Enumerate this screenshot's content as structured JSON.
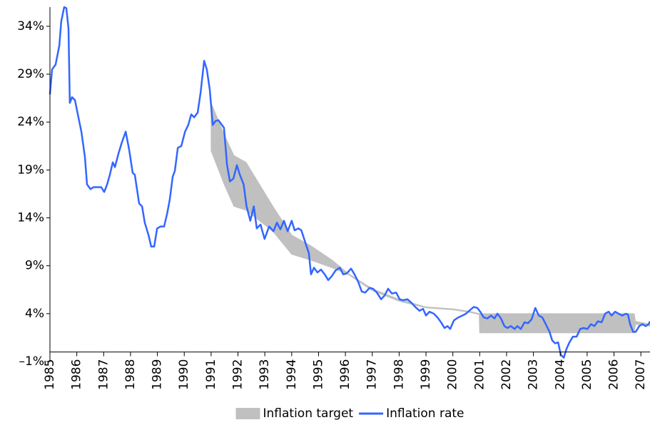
{
  "chart_data": {
    "type": "line",
    "xlim": [
      1985,
      2007.34
    ],
    "xticks": [
      1985,
      1986,
      1987,
      1988,
      1989,
      1990,
      1991,
      1992,
      1993,
      1994,
      1995,
      1996,
      1997,
      1998,
      1999,
      2000,
      2001,
      2002,
      2003,
      2004,
      2005,
      2006,
      2007
    ],
    "ylim": [
      -1,
      36
    ],
    "yticks": [
      {
        "value": -1,
        "label": "–1%"
      },
      {
        "value": 4,
        "label": "4%"
      },
      {
        "value": 9,
        "label": "9%"
      },
      {
        "value": 14,
        "label": "14%"
      },
      {
        "value": 19,
        "label": "19%"
      },
      {
        "value": 24,
        "label": "24%"
      },
      {
        "value": 29,
        "label": "29%"
      },
      {
        "value": 34,
        "label": "34%"
      }
    ],
    "x_axis_crosses": 0,
    "grid": false,
    "legend": "bottom",
    "series": [
      {
        "name": "Inflation target",
        "type": "band",
        "color": "#c0c0c0",
        "x": [
          1991.0,
          1991.5,
          1991.85,
          1992.3,
          1993.3,
          1994.0,
          1994.7,
          1995.5,
          1996.1,
          1997.0,
          1998.0,
          1999.0,
          2000.0,
          2000.7,
          2000.98,
          2001.0,
          2006.75,
          2006.8,
          2007.34
        ],
        "upper": [
          26,
          22.6,
          20.5,
          19.8,
          15.2,
          12.2,
          11.1,
          9.6,
          8.2,
          6.6,
          5.5,
          4.7,
          4.5,
          4.2,
          4.0,
          4.0,
          4.0,
          3.2,
          2.9
        ],
        "lower": [
          21,
          17.4,
          15.2,
          14.8,
          12.6,
          10.2,
          9.6,
          8.8,
          8.1,
          6.4,
          5.3,
          4.6,
          4.4,
          4.1,
          3.9,
          2.0,
          2.0,
          2.9,
          2.7
        ]
      },
      {
        "name": "Inflation rate",
        "type": "line",
        "color": "#3366ff",
        "x": [
          1985.0,
          1985.08,
          1985.21,
          1985.35,
          1985.42,
          1985.53,
          1985.61,
          1985.69,
          1985.74,
          1985.82,
          1985.93,
          1986.06,
          1986.17,
          1986.3,
          1986.38,
          1986.51,
          1986.62,
          1986.78,
          1986.91,
          1987.02,
          1987.13,
          1987.23,
          1987.34,
          1987.42,
          1987.55,
          1987.68,
          1987.82,
          1987.95,
          1988.08,
          1988.16,
          1988.32,
          1988.43,
          1988.53,
          1988.67,
          1988.77,
          1988.88,
          1988.99,
          1989.12,
          1989.25,
          1989.36,
          1989.46,
          1989.57,
          1989.65,
          1989.76,
          1989.89,
          1990.03,
          1990.15,
          1990.26,
          1990.37,
          1990.5,
          1990.61,
          1990.74,
          1990.84,
          1990.95,
          1991.06,
          1991.16,
          1991.27,
          1991.35,
          1991.48,
          1991.59,
          1991.7,
          1991.83,
          1991.96,
          1992.07,
          1992.21,
          1992.32,
          1992.46,
          1992.59,
          1992.7,
          1992.84,
          1992.99,
          1993.16,
          1993.32,
          1993.45,
          1993.58,
          1993.71,
          1993.85,
          1994.0,
          1994.11,
          1994.25,
          1994.36,
          1994.51,
          1994.64,
          1994.72,
          1994.83,
          1994.96,
          1995.09,
          1995.23,
          1995.36,
          1995.49,
          1995.63,
          1995.79,
          1995.92,
          1996.05,
          1996.21,
          1996.34,
          1996.48,
          1996.61,
          1996.74,
          1996.9,
          1997.03,
          1997.17,
          1997.33,
          1997.46,
          1997.59,
          1997.73,
          1997.89,
          1998.02,
          1998.15,
          1998.31,
          1998.47,
          1998.6,
          1998.76,
          1998.89,
          1999.0,
          1999.13,
          1999.29,
          1999.43,
          1999.56,
          1999.69,
          1999.8,
          1999.9,
          2000.04,
          2000.2,
          2000.36,
          2000.49,
          2000.65,
          2000.78,
          2000.91,
          2001.02,
          2001.15,
          2001.29,
          2001.42,
          2001.55,
          2001.66,
          2001.79,
          2001.92,
          2002.03,
          2002.16,
          2002.3,
          2002.4,
          2002.53,
          2002.67,
          2002.8,
          2002.93,
          2003.07,
          2003.2,
          2003.33,
          2003.46,
          2003.6,
          2003.7,
          2003.81,
          2003.92,
          2004.02,
          2004.13,
          2004.23,
          2004.34,
          2004.47,
          2004.61,
          2004.74,
          2004.87,
          2005.01,
          2005.14,
          2005.27,
          2005.4,
          2005.54,
          2005.67,
          2005.8,
          2005.91,
          2006.04,
          2006.17,
          2006.31,
          2006.44,
          2006.52,
          2006.6,
          2006.71,
          2006.81,
          2006.94,
          2007.05,
          2007.18,
          2007.29,
          2007.34
        ],
        "values": [
          26.9,
          29.5,
          30,
          32,
          34.5,
          36,
          35.9,
          33.8,
          26,
          26.6,
          26.3,
          24.5,
          23,
          20.4,
          17.5,
          17,
          17.2,
          17.2,
          17.2,
          16.7,
          17.5,
          18.5,
          19.8,
          19.3,
          20.7,
          21.9,
          23,
          21.1,
          18.7,
          18.5,
          15.5,
          15.2,
          13.5,
          12.2,
          11,
          11,
          12.9,
          13.1,
          13.1,
          14.4,
          15.9,
          18.3,
          18.9,
          21.3,
          21.5,
          23,
          23.7,
          24.8,
          24.5,
          25,
          27.1,
          30.4,
          29.5,
          27.4,
          23.7,
          24.1,
          24.2,
          23.9,
          23.4,
          19.6,
          17.8,
          18.1,
          19.5,
          18.5,
          17.5,
          15.2,
          13.7,
          15.2,
          12.9,
          13.3,
          11.8,
          13.1,
          12.6,
          13.5,
          12.8,
          13.7,
          12.6,
          13.7,
          12.7,
          12.9,
          12.7,
          11.4,
          10.3,
          8.1,
          8.8,
          8.3,
          8.6,
          8.1,
          7.5,
          7.9,
          8.5,
          8.8,
          8.1,
          8.2,
          8.7,
          8.1,
          7.3,
          6.3,
          6.2,
          6.7,
          6.6,
          6.2,
          5.5,
          5.9,
          6.6,
          6.1,
          6.2,
          5.5,
          5.4,
          5.5,
          5.1,
          4.7,
          4.3,
          4.5,
          3.8,
          4.2,
          4.0,
          3.6,
          3.1,
          2.5,
          2.7,
          2.4,
          3.3,
          3.6,
          3.8,
          4.0,
          4.4,
          4.7,
          4.6,
          4.2,
          3.6,
          3.5,
          3.8,
          3.5,
          4.0,
          3.5,
          2.7,
          2.5,
          2.7,
          2.4,
          2.7,
          2.4,
          3.1,
          3.0,
          3.4,
          4.6,
          3.8,
          3.6,
          2.9,
          2.1,
          1.2,
          0.9,
          1.0,
          -0.3,
          -0.6,
          0.3,
          1.0,
          1.6,
          1.6,
          2.4,
          2.5,
          2.4,
          2.9,
          2.7,
          3.2,
          3.1,
          4.0,
          4.2,
          3.8,
          4.2,
          4.0,
          3.8,
          4.0,
          3.9,
          2.9,
          2.1,
          2.1,
          2.7,
          2.9,
          2.7,
          2.9,
          3.2
        ]
      }
    ]
  }
}
